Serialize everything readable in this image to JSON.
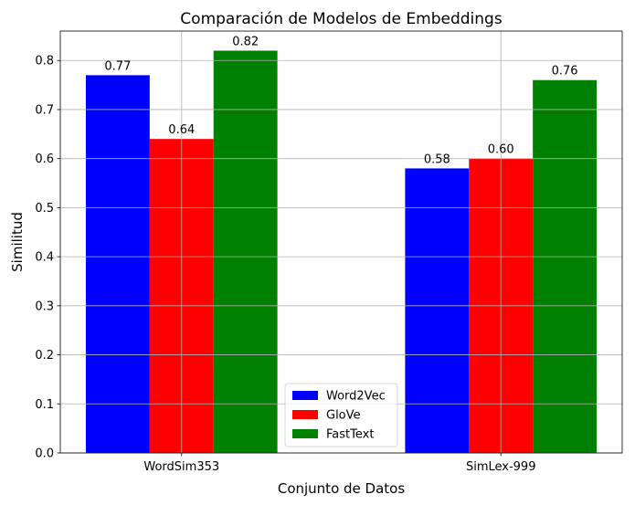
{
  "chart_data": {
    "type": "bar",
    "title": "Comparación de Modelos de Embeddings",
    "xlabel": "Conjunto de Datos",
    "ylabel": "Similitud",
    "categories": [
      "WordSim353",
      "SimLex-999"
    ],
    "series": [
      {
        "name": "Word2Vec",
        "values": [
          0.77,
          0.58
        ],
        "color": "#0000ff"
      },
      {
        "name": "GloVe",
        "values": [
          0.64,
          0.6
        ],
        "color": "#ff0000"
      },
      {
        "name": "FastText",
        "values": [
          0.82,
          0.76
        ],
        "color": "#008000"
      }
    ],
    "data_labels": [
      [
        "0.77",
        "0.58"
      ],
      [
        "0.64",
        "0.60"
      ],
      [
        "0.82",
        "0.76"
      ]
    ],
    "ylim": [
      0,
      0.86
    ],
    "yticks": [
      "0.0",
      "0.1",
      "0.2",
      "0.3",
      "0.4",
      "0.5",
      "0.6",
      "0.7",
      "0.8"
    ],
    "grid": true,
    "legend_position": "lower-center"
  }
}
